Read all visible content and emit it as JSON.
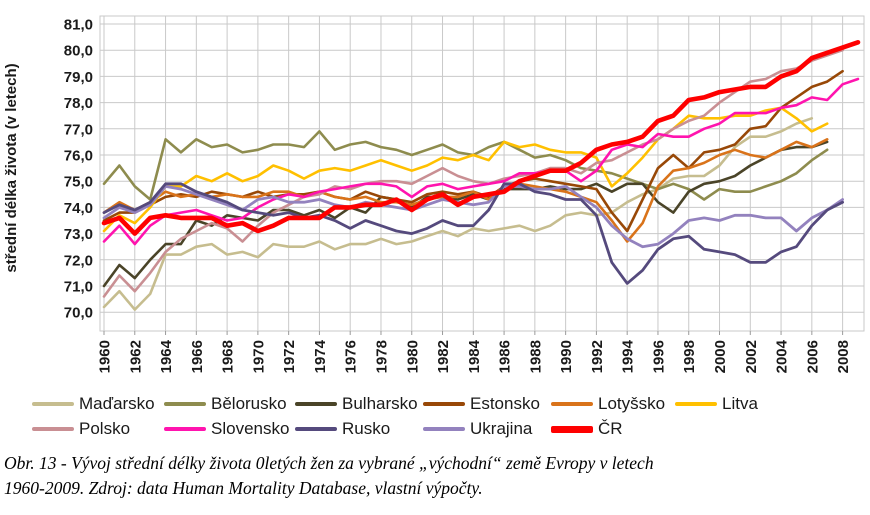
{
  "chart_data": {
    "type": "line",
    "title": "",
    "xlabel": "",
    "ylabel": "střední délka života (v letech)",
    "ylim": [
      70.0,
      81.0
    ],
    "y_tick_step": 1.0,
    "grid": true,
    "legend_position": "bottom",
    "y_tick_labels": [
      "81,0",
      "80,0",
      "79,0",
      "78,0",
      "77,0",
      "76,0",
      "75,0",
      "74,0",
      "73,0",
      "72,0",
      "71,0",
      "70,0"
    ],
    "x_tick_labels": [
      "1960",
      "1962",
      "1964",
      "1966",
      "1968",
      "1970",
      "1972",
      "1974",
      "1976",
      "1978",
      "1980",
      "1982",
      "1984",
      "1986",
      "1988",
      "1990",
      "1992",
      "1994",
      "1996",
      "1998",
      "2000",
      "2002",
      "2004",
      "2006",
      "2008"
    ],
    "x": [
      1960,
      1961,
      1962,
      1963,
      1964,
      1965,
      1966,
      1967,
      1968,
      1969,
      1970,
      1971,
      1972,
      1973,
      1974,
      1975,
      1976,
      1977,
      1978,
      1979,
      1980,
      1981,
      1982,
      1983,
      1984,
      1985,
      1986,
      1987,
      1988,
      1989,
      1990,
      1991,
      1992,
      1993,
      1994,
      1995,
      1996,
      1997,
      1998,
      1999,
      2000,
      2001,
      2002,
      2003,
      2004,
      2005,
      2006,
      2007,
      2008,
      2009
    ],
    "grid_color": "#C9C9C9",
    "series": [
      {
        "name": "Maďarsko",
        "color": "#C6BD8F",
        "width": 2.6,
        "values": [
          70.2,
          70.8,
          70.1,
          70.7,
          72.2,
          72.2,
          72.5,
          72.6,
          72.2,
          72.3,
          72.1,
          72.6,
          72.5,
          72.5,
          72.7,
          72.4,
          72.6,
          72.6,
          72.8,
          72.6,
          72.7,
          72.9,
          73.1,
          72.9,
          73.2,
          73.1,
          73.2,
          73.3,
          73.1,
          73.3,
          73.7,
          73.8,
          73.7,
          73.8,
          74.2,
          74.5,
          74.7,
          75.1,
          75.2,
          75.2,
          75.6,
          76.3,
          76.7,
          76.7,
          76.9,
          77.2,
          77.4,
          null,
          null,
          null
        ]
      },
      {
        "name": "Bělorusko",
        "color": "#8E8C4E",
        "width": 2.6,
        "values": [
          74.9,
          75.6,
          74.8,
          74.3,
          76.6,
          76.1,
          76.6,
          76.3,
          76.4,
          76.1,
          76.2,
          76.4,
          76.4,
          76.3,
          76.9,
          76.2,
          76.4,
          76.5,
          76.3,
          76.2,
          76.0,
          76.2,
          76.4,
          76.1,
          76.0,
          76.3,
          76.5,
          76.2,
          75.9,
          76.0,
          75.8,
          75.5,
          75.4,
          75.3,
          75.1,
          74.9,
          74.7,
          74.9,
          74.7,
          74.3,
          74.7,
          74.6,
          74.6,
          74.8,
          75.0,
          75.3,
          75.8,
          76.2,
          null,
          null
        ]
      },
      {
        "name": "Bulharsko",
        "color": "#4A4428",
        "width": 2.6,
        "values": [
          71.0,
          71.8,
          71.3,
          72.0,
          72.6,
          72.6,
          73.5,
          73.3,
          73.7,
          73.6,
          73.5,
          73.9,
          73.9,
          73.7,
          73.9,
          73.6,
          74.0,
          73.8,
          74.4,
          74.3,
          74.0,
          74.4,
          74.4,
          74.3,
          74.5,
          74.3,
          74.7,
          74.7,
          74.7,
          74.8,
          74.7,
          74.7,
          74.9,
          74.6,
          74.9,
          74.9,
          74.2,
          73.8,
          74.6,
          74.9,
          75.0,
          75.2,
          75.6,
          75.9,
          76.2,
          76.3,
          76.3,
          76.5,
          null,
          null
        ]
      },
      {
        "name": "Estonsko",
        "color": "#984807",
        "width": 2.6,
        "values": [
          73.5,
          73.8,
          73.8,
          74.1,
          74.4,
          74.5,
          74.4,
          74.6,
          74.5,
          74.4,
          74.6,
          74.4,
          74.5,
          74.5,
          74.6,
          74.4,
          74.3,
          74.6,
          74.4,
          74.3,
          74.2,
          74.5,
          74.6,
          74.5,
          74.6,
          74.4,
          74.8,
          75.0,
          75.1,
          75.0,
          74.9,
          74.8,
          74.7,
          73.8,
          73.1,
          74.3,
          75.5,
          76.0,
          75.5,
          76.1,
          76.2,
          76.4,
          77.0,
          77.1,
          77.8,
          78.2,
          78.6,
          78.8,
          79.2,
          null
        ]
      },
      {
        "name": "Lotyšsko",
        "color": "#D9731A",
        "width": 2.6,
        "values": [
          73.8,
          74.2,
          73.9,
          74.2,
          74.6,
          74.4,
          74.5,
          74.4,
          74.5,
          74.4,
          74.4,
          74.6,
          74.6,
          74.4,
          74.6,
          74.4,
          74.3,
          74.4,
          74.2,
          74.2,
          74.1,
          74.3,
          74.4,
          74.4,
          74.6,
          74.3,
          74.8,
          74.9,
          74.8,
          74.7,
          74.6,
          74.4,
          74.2,
          73.5,
          72.7,
          73.4,
          74.8,
          75.4,
          75.5,
          75.7,
          76.0,
          76.2,
          76.0,
          75.9,
          76.2,
          76.5,
          76.3,
          76.6,
          null,
          null
        ]
      },
      {
        "name": "Litva",
        "color": "#FFC000",
        "width": 2.6,
        "values": [
          73.1,
          73.7,
          73.4,
          74.0,
          74.8,
          74.8,
          75.2,
          75.0,
          75.3,
          75.0,
          75.2,
          75.6,
          75.4,
          75.1,
          75.4,
          75.5,
          75.4,
          75.6,
          75.8,
          75.6,
          75.4,
          75.6,
          75.9,
          75.8,
          76.0,
          75.8,
          76.5,
          76.3,
          76.4,
          76.2,
          76.1,
          76.1,
          75.9,
          74.8,
          75.3,
          75.9,
          76.6,
          77.0,
          77.5,
          77.4,
          77.4,
          77.5,
          77.5,
          77.7,
          77.8,
          77.4,
          76.9,
          77.2,
          null,
          null
        ]
      },
      {
        "name": "Polsko",
        "color": "#C98F93",
        "width": 2.6,
        "values": [
          70.6,
          71.4,
          70.8,
          71.5,
          72.3,
          72.8,
          73.1,
          73.4,
          73.2,
          72.7,
          73.3,
          73.8,
          74.1,
          74.4,
          74.5,
          74.8,
          74.7,
          74.9,
          75.0,
          75.0,
          74.9,
          75.2,
          75.5,
          75.2,
          75.0,
          74.9,
          75.1,
          75.2,
          75.3,
          75.5,
          75.5,
          75.3,
          75.7,
          75.8,
          76.1,
          76.4,
          76.6,
          77.0,
          77.3,
          77.5,
          78.0,
          78.4,
          78.8,
          78.9,
          79.2,
          79.3,
          79.6,
          79.8,
          80.0,
          null
        ]
      },
      {
        "name": "Slovensko",
        "color": "#FF14AE",
        "width": 2.6,
        "values": [
          72.7,
          73.3,
          72.6,
          73.3,
          73.7,
          73.8,
          73.9,
          73.7,
          73.5,
          73.6,
          74.0,
          74.3,
          74.5,
          74.4,
          74.6,
          74.7,
          74.8,
          74.9,
          74.9,
          74.8,
          74.4,
          74.8,
          74.9,
          74.7,
          74.8,
          74.9,
          75.0,
          75.3,
          75.3,
          75.4,
          75.4,
          75.0,
          75.4,
          76.2,
          76.4,
          76.3,
          76.8,
          76.7,
          76.7,
          77.0,
          77.2,
          77.6,
          77.6,
          77.6,
          77.8,
          77.9,
          78.2,
          78.1,
          78.7,
          78.9
        ]
      },
      {
        "name": "Rusko",
        "color": "#554A7D",
        "width": 2.8,
        "values": [
          73.8,
          74.1,
          73.9,
          74.2,
          74.9,
          74.9,
          74.6,
          74.4,
          74.2,
          73.9,
          73.8,
          73.7,
          73.8,
          73.6,
          73.7,
          73.5,
          73.2,
          73.5,
          73.3,
          73.1,
          73.0,
          73.2,
          73.5,
          73.3,
          73.3,
          73.9,
          74.9,
          74.9,
          74.6,
          74.5,
          74.3,
          74.3,
          73.7,
          71.9,
          71.1,
          71.6,
          72.4,
          72.8,
          72.9,
          72.4,
          72.3,
          72.2,
          71.9,
          71.9,
          72.3,
          72.5,
          73.3,
          73.9,
          74.2,
          null
        ]
      },
      {
        "name": "Ukrajina",
        "color": "#9382BE",
        "width": 2.8,
        "values": [
          73.6,
          74.0,
          73.8,
          74.1,
          74.8,
          74.7,
          74.5,
          74.3,
          74.1,
          73.9,
          74.3,
          74.4,
          74.2,
          74.2,
          74.3,
          74.1,
          74.0,
          74.2,
          74.1,
          74.0,
          73.9,
          74.1,
          74.3,
          74.2,
          74.1,
          74.2,
          74.8,
          74.8,
          74.7,
          74.7,
          74.8,
          74.4,
          74.0,
          73.3,
          72.8,
          72.5,
          72.6,
          73.0,
          73.5,
          73.6,
          73.5,
          73.7,
          73.7,
          73.6,
          73.6,
          73.1,
          73.6,
          73.9,
          74.3,
          null
        ]
      },
      {
        "name": "ČR",
        "color": "#FE0000",
        "width": 4.6,
        "values": [
          73.4,
          73.6,
          73.0,
          73.6,
          73.7,
          73.6,
          73.6,
          73.6,
          73.3,
          73.4,
          73.1,
          73.3,
          73.6,
          73.6,
          73.6,
          74.0,
          74.0,
          74.1,
          74.1,
          74.3,
          73.9,
          74.3,
          74.5,
          74.1,
          74.4,
          74.5,
          74.6,
          75.0,
          75.2,
          75.4,
          75.4,
          75.7,
          76.2,
          76.4,
          76.5,
          76.7,
          77.3,
          77.5,
          78.1,
          78.2,
          78.4,
          78.5,
          78.6,
          78.6,
          79.0,
          79.2,
          79.7,
          79.9,
          80.1,
          80.3
        ]
      }
    ],
    "draw_order": [
      0,
      1,
      2,
      3,
      4,
      5,
      6,
      7,
      9,
      8,
      10
    ],
    "legend_rows": [
      [
        0,
        1,
        2,
        3,
        4,
        5
      ],
      [
        6,
        7,
        8,
        9,
        10
      ]
    ]
  },
  "figure": {
    "caption_line1": "Obr. 13 - Vývoj střední délky života 0letých žen za vybrané „východní“ země Evropy v letech",
    "caption_line2": "1960-2009. Zdroj: data Human Mortality Database, vlastní výpočty."
  }
}
